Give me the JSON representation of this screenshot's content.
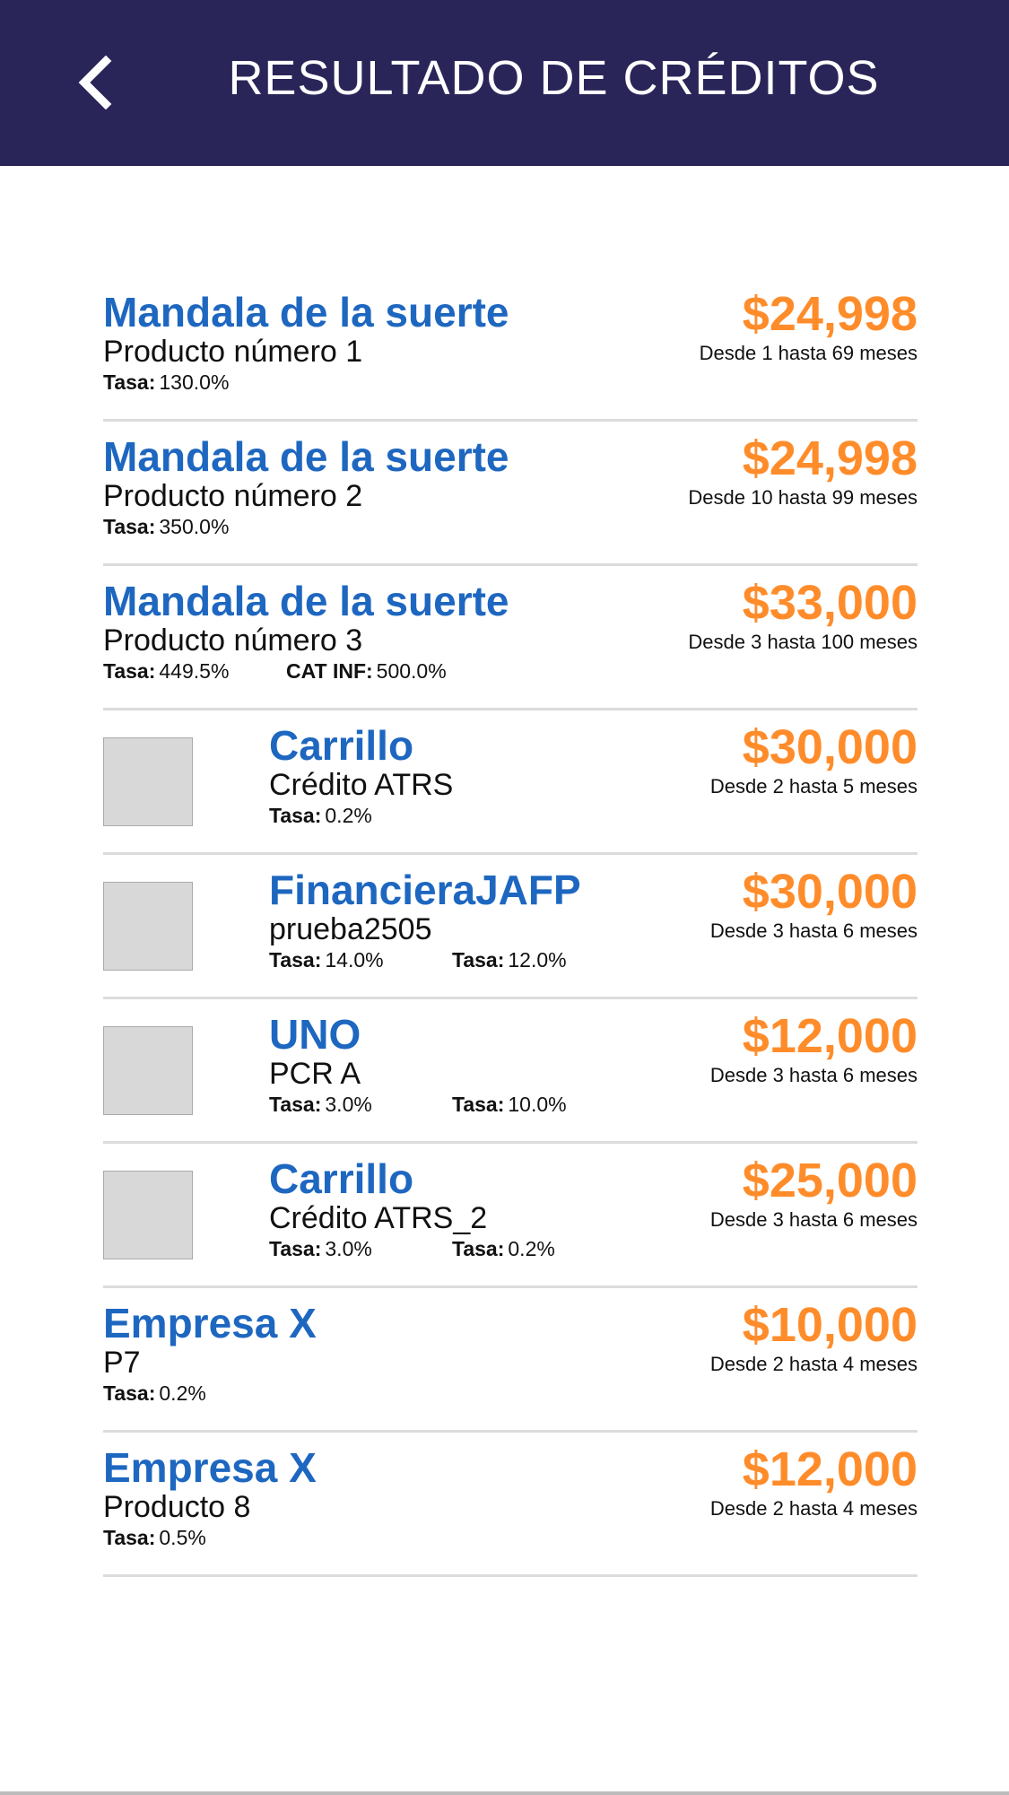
{
  "header": {
    "title": "RESULTADO DE CRÉDITOS",
    "back_icon": "chevron-left-icon",
    "background": "#2a2558"
  },
  "colors": {
    "name": "#1e67c0",
    "amount": "#ff8c2a"
  },
  "results": [
    {
      "name": "Mandala de la suerte",
      "product": "Producto número 1",
      "amount": "$24,998",
      "range": "Desde 1 hasta 69 meses",
      "logo": false,
      "rates": [
        {
          "label": "Tasa:",
          "value": "130.0%"
        }
      ]
    },
    {
      "name": "Mandala de la suerte",
      "product": "Producto número 2",
      "amount": "$24,998",
      "range": "Desde 10 hasta 99 meses",
      "logo": false,
      "rates": [
        {
          "label": "Tasa:",
          "value": "350.0%"
        }
      ]
    },
    {
      "name": "Mandala de la suerte",
      "product": "Producto número 3",
      "amount": "$33,000",
      "range": "Desde 3 hasta 100 meses",
      "logo": false,
      "rates": [
        {
          "label": "Tasa:",
          "value": "449.5%"
        },
        {
          "label": "CAT INF:",
          "value": "500.0%"
        }
      ]
    },
    {
      "name": "Carrillo",
      "product": "Crédito ATRS",
      "amount": "$30,000",
      "range": "Desde 2 hasta 5 meses",
      "logo": true,
      "rates": [
        {
          "label": "Tasa:",
          "value": "0.2%"
        }
      ]
    },
    {
      "name": "FinancieraJAFP",
      "product": "prueba2505",
      "amount": "$30,000",
      "range": "Desde 3 hasta 6 meses",
      "logo": true,
      "rates": [
        {
          "label": "Tasa:",
          "value": "14.0%"
        },
        {
          "label": "Tasa:",
          "value": "12.0%"
        }
      ]
    },
    {
      "name": "UNO",
      "product": "PCR A",
      "amount": "$12,000",
      "range": "Desde 3 hasta 6 meses",
      "logo": true,
      "rates": [
        {
          "label": "Tasa:",
          "value": "3.0%"
        },
        {
          "label": "Tasa:",
          "value": "10.0%"
        }
      ]
    },
    {
      "name": "Carrillo",
      "product": "Crédito ATRS_2",
      "amount": "$25,000",
      "range": "Desde 3 hasta 6 meses",
      "logo": true,
      "rates": [
        {
          "label": "Tasa:",
          "value": "3.0%"
        },
        {
          "label": "Tasa:",
          "value": "0.2%"
        }
      ]
    },
    {
      "name": "Empresa X",
      "product": "P7",
      "amount": "$10,000",
      "range": "Desde 2 hasta 4 meses",
      "logo": false,
      "rates": [
        {
          "label": "Tasa:",
          "value": "0.2%"
        }
      ]
    },
    {
      "name": "Empresa X",
      "product": "Producto 8",
      "amount": "$12,000",
      "range": "Desde 2 hasta 4 meses",
      "logo": false,
      "rates": [
        {
          "label": "Tasa:",
          "value": "0.5%"
        }
      ]
    }
  ]
}
